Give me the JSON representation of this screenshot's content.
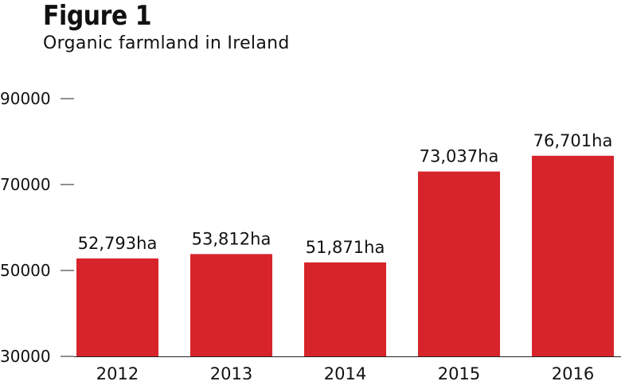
{
  "title": "Figure 1",
  "subtitle": "Organic farmland in Ireland",
  "chart_data": {
    "type": "bar",
    "title": "Figure 1",
    "subtitle": "Organic farmland in Ireland",
    "categories": [
      "2012",
      "2013",
      "2014",
      "2015",
      "2016"
    ],
    "values": [
      52793,
      53812,
      51871,
      73037,
      76701
    ],
    "data_labels": [
      "52,793ha",
      "53,812ha",
      "51,871ha",
      "73,037ha",
      "76,701ha"
    ],
    "xlabel": "",
    "ylabel": "",
    "ylim": [
      30000,
      90000
    ],
    "yticks": [
      "30000",
      "50000",
      "70000",
      "90000"
    ],
    "grid": false,
    "bar_color": "#d7242b"
  }
}
